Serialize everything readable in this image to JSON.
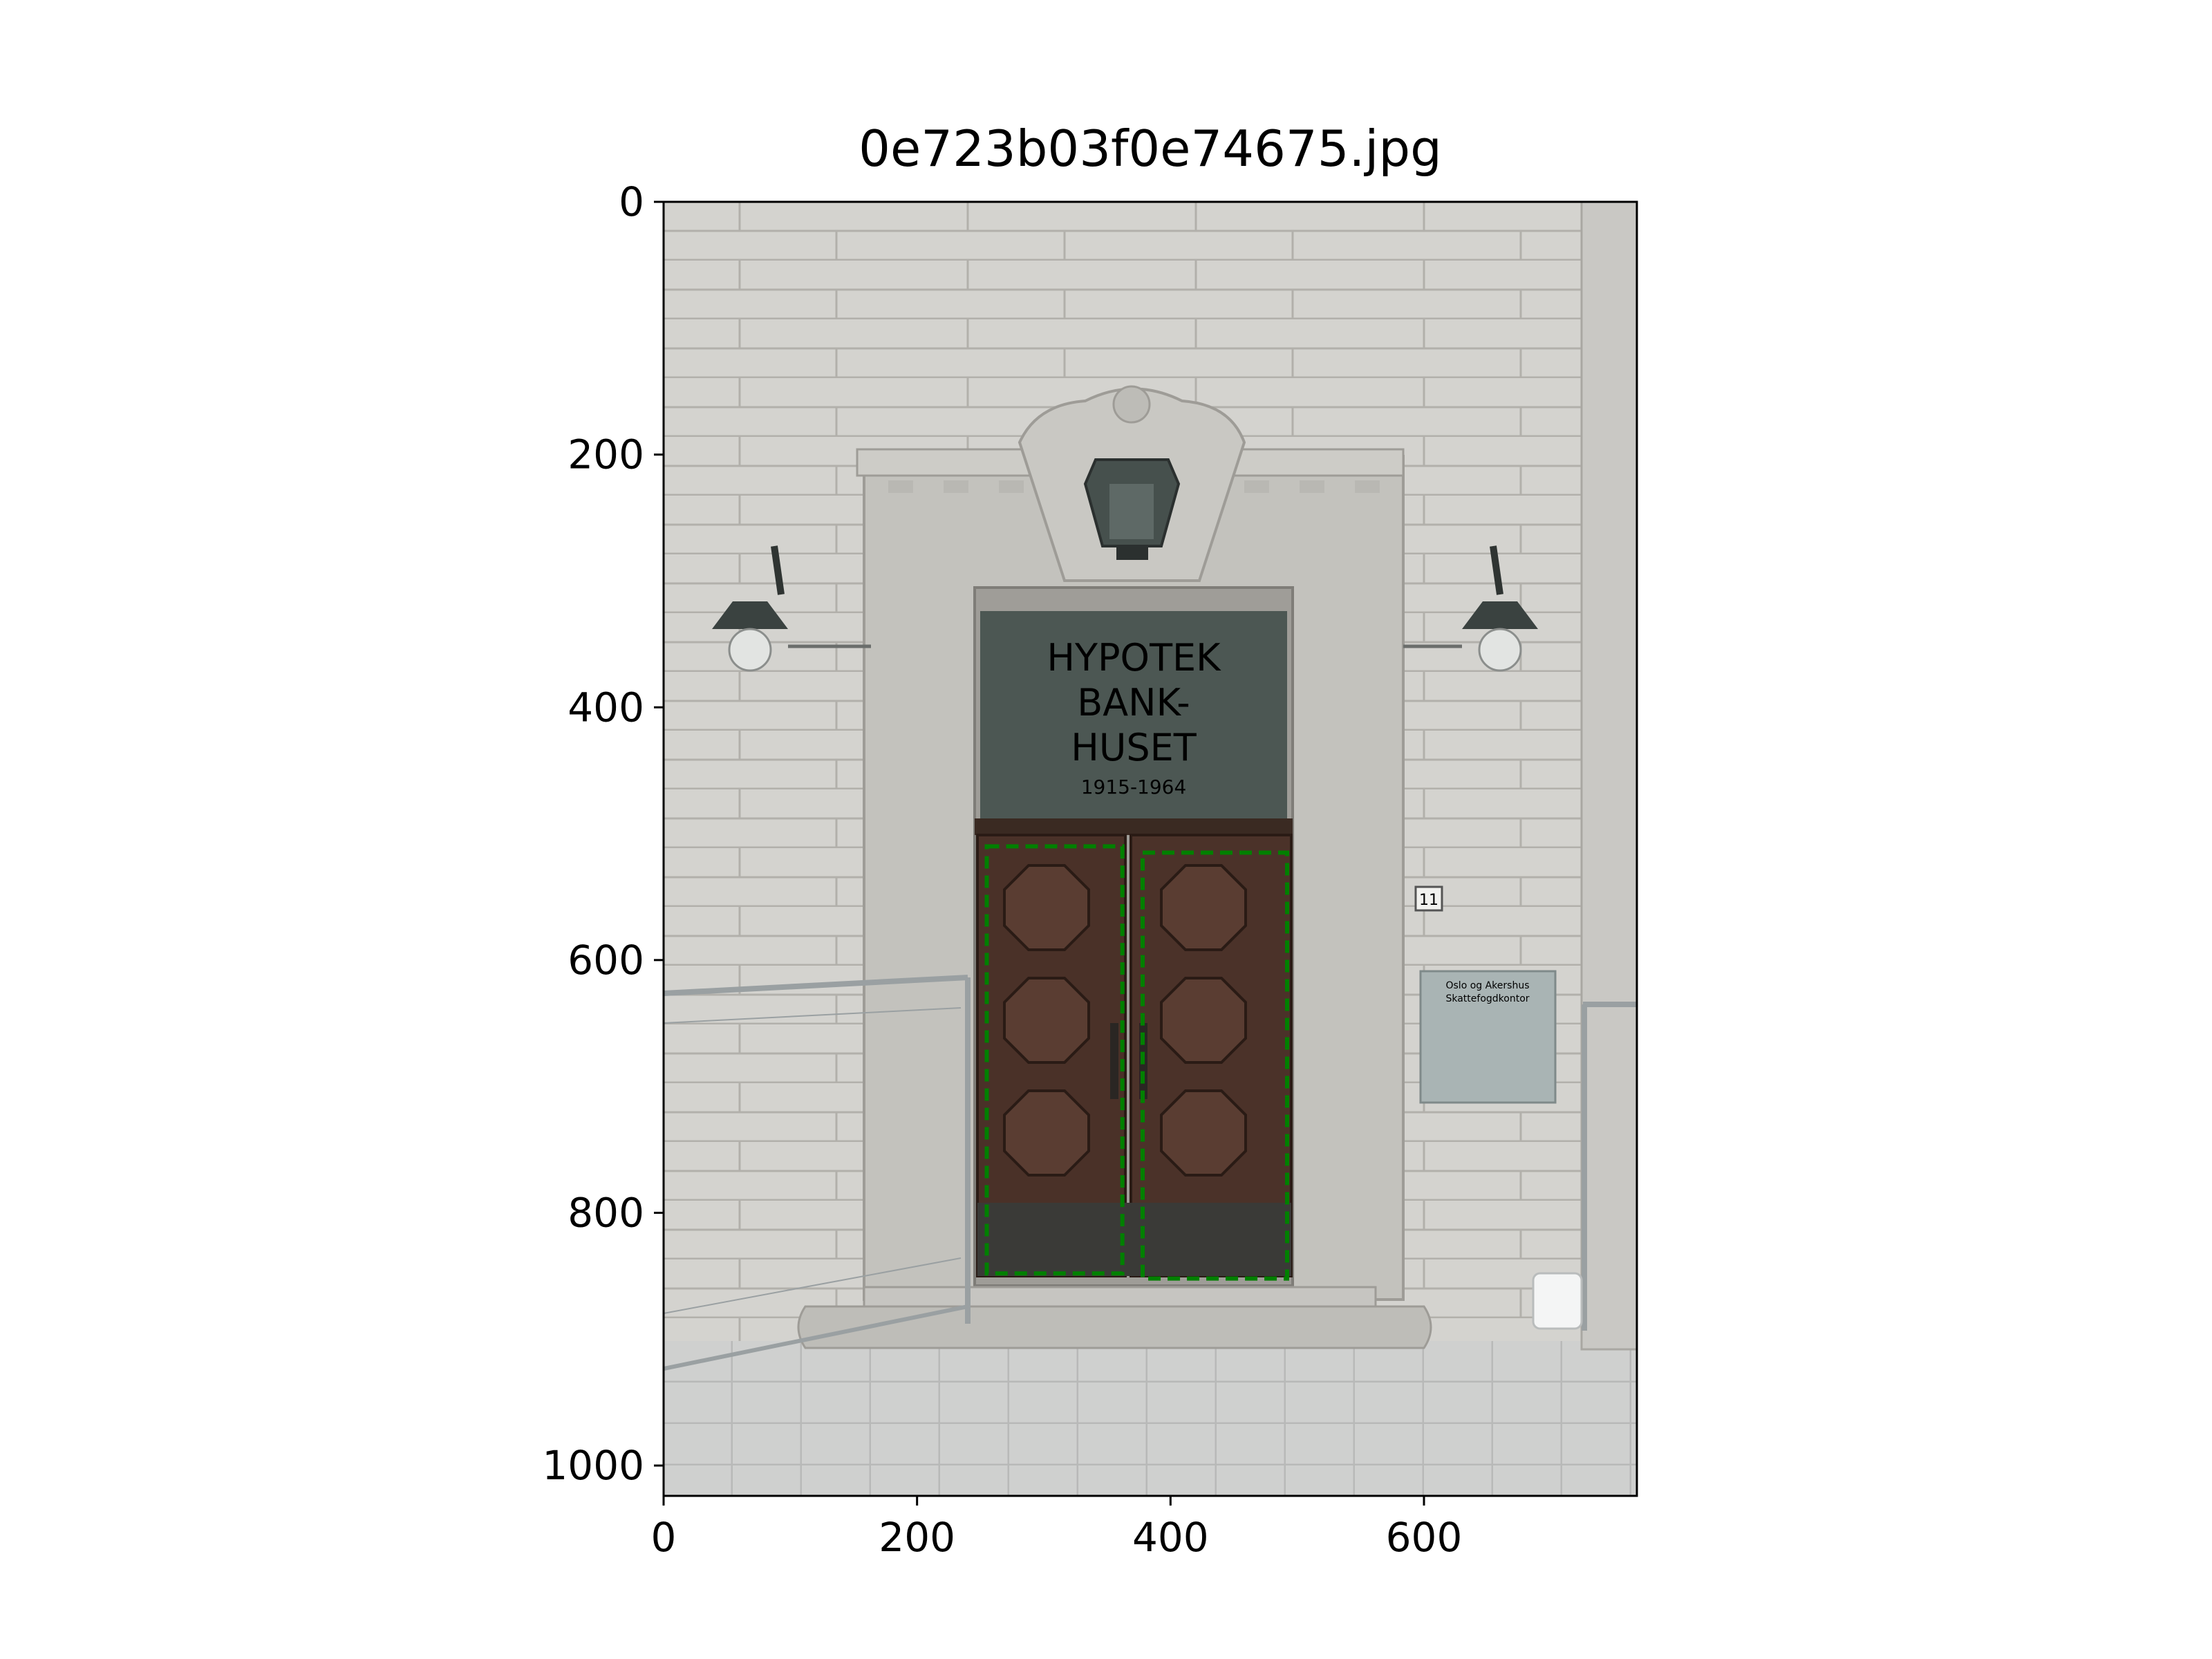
{
  "figure": {
    "title": "0e723b03f0e74675.jpg"
  },
  "axes": {
    "xlim": [
      0,
      768
    ],
    "ylim": [
      1024,
      0
    ],
    "x_ticks": [
      {
        "value": 0,
        "label": "0"
      },
      {
        "value": 200,
        "label": "200"
      },
      {
        "value": 400,
        "label": "400"
      },
      {
        "value": 600,
        "label": "600"
      }
    ],
    "y_ticks": [
      {
        "value": 0,
        "label": "0"
      },
      {
        "value": 200,
        "label": "200"
      },
      {
        "value": 400,
        "label": "400"
      },
      {
        "value": 600,
        "label": "600"
      },
      {
        "value": 800,
        "label": "800"
      },
      {
        "value": 1000,
        "label": "1000"
      }
    ]
  },
  "photo": {
    "engraving": [
      "HYPOTEK",
      "BANK-",
      "HUSET",
      "1915-1964"
    ],
    "house_number": "11",
    "plaque_text": [
      "Oslo og Akershus",
      "Skattefogdkontor"
    ]
  },
  "annotations": [
    {
      "label": "door",
      "color": "#008000",
      "style": "dashed",
      "x0": 255,
      "y0": 510,
      "x1": 362,
      "y1": 848
    },
    {
      "label": "door",
      "color": "#008000",
      "style": "dashed",
      "x0": 378,
      "y0": 515,
      "x1": 492,
      "y1": 852
    }
  ]
}
